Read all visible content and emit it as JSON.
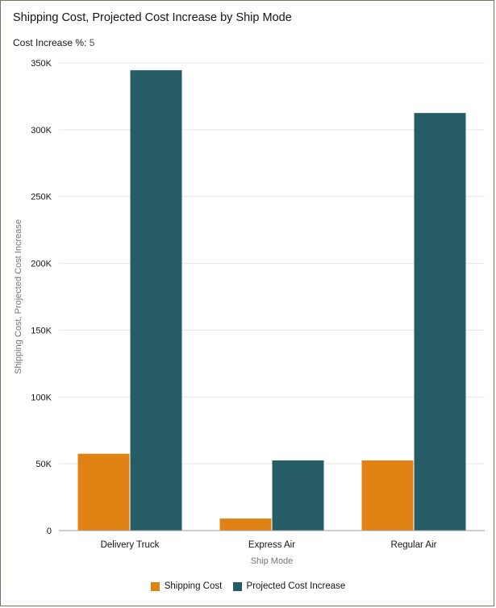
{
  "colors": {
    "shipping": "#e08214",
    "projected": "#255c65",
    "grid": "#e6e6e6",
    "axis": "#9e9e9e"
  },
  "header": {
    "title": "Shipping Cost, Projected Cost Increase by Ship Mode",
    "param_label": "Cost Increase %:",
    "param_value": "5"
  },
  "chart_data": {
    "type": "bar",
    "title": "Shipping Cost, Projected Cost Increase by Ship Mode",
    "xlabel": "Ship Mode",
    "ylabel": "Shipping Cost, Projected Cost Increase",
    "categories": [
      "Delivery Truck",
      "Express Air",
      "Regular Air"
    ],
    "series": [
      {
        "name": "Shipping Cost",
        "values": [
          57500,
          9000,
          52500
        ]
      },
      {
        "name": "Projected Cost Increase",
        "values": [
          344500,
          52500,
          312500
        ]
      }
    ],
    "ylim": [
      0,
      350000
    ],
    "yticks": [
      0,
      50000,
      100000,
      150000,
      200000,
      250000,
      300000,
      350000
    ],
    "ytick_labels": [
      "0",
      "50K",
      "100K",
      "150K",
      "200K",
      "250K",
      "300K",
      "350K"
    ],
    "grid": true,
    "legend": "bottom-center"
  }
}
